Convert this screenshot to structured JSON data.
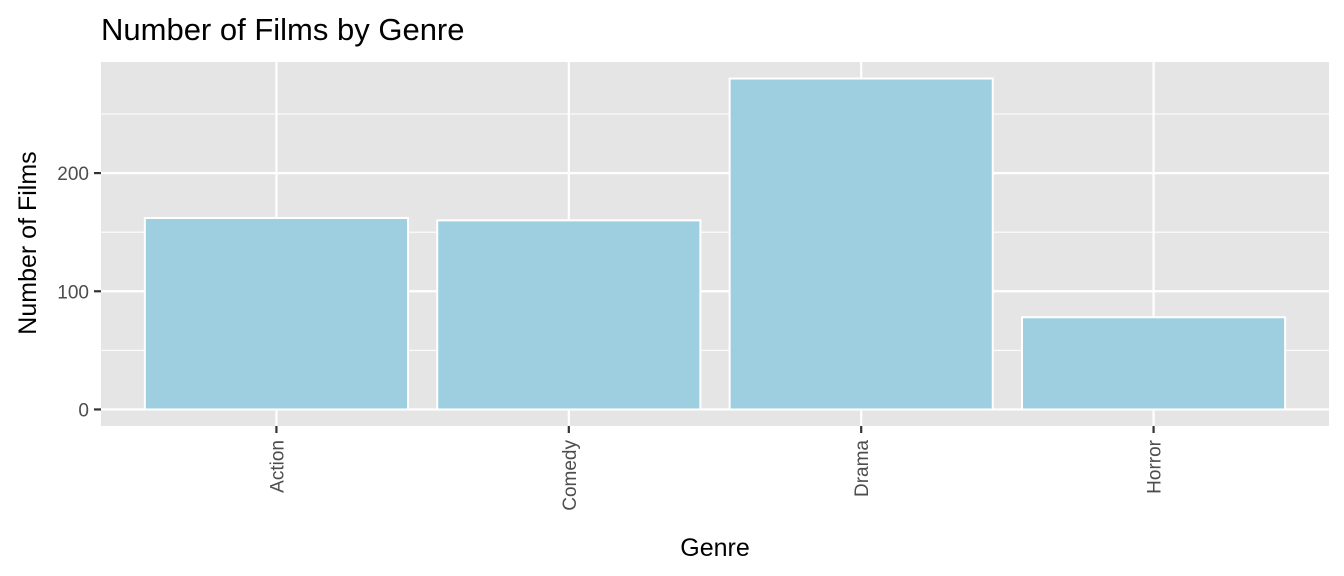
{
  "chart_data": {
    "type": "bar",
    "title": "Number of Films by Genre",
    "xlabel": "Genre",
    "ylabel": "Number of Films",
    "categories": [
      "Action",
      "Comedy",
      "Drama",
      "Horror"
    ],
    "values": [
      162,
      160,
      280,
      78
    ],
    "ylim": [
      -14,
      294
    ],
    "yticks": [
      0,
      100,
      200
    ],
    "ytick_labels": [
      "0",
      "100",
      "200"
    ],
    "grid": true,
    "legend": "none",
    "colors": {
      "bar_fill": "#9ecfe0",
      "bar_stroke": "#ffffff",
      "panel_background": "#e5e5e5",
      "grid": "#ffffff",
      "tick_text": "#4d4d4d",
      "tick_mark": "#333333"
    }
  }
}
